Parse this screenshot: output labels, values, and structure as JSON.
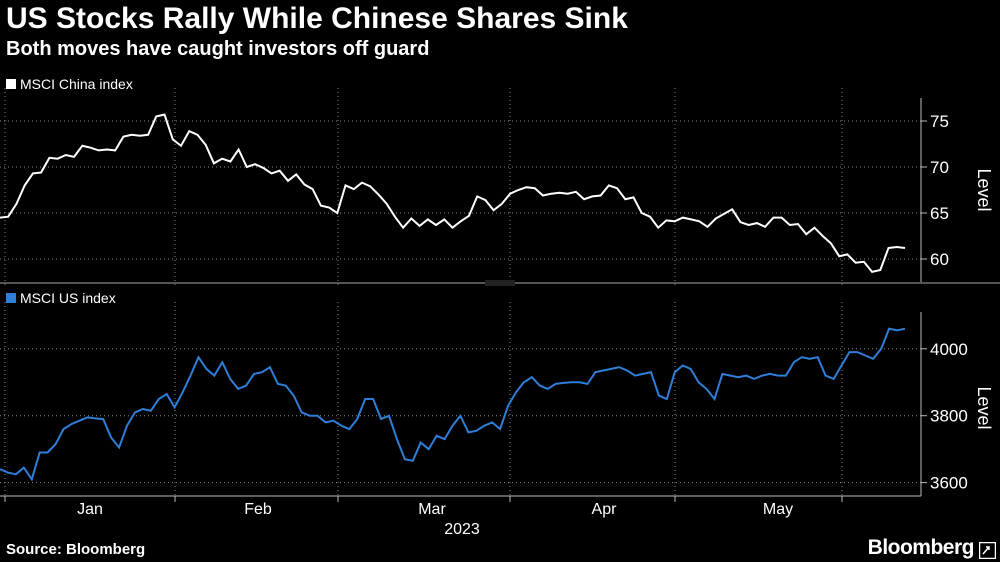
{
  "header": {
    "title": "US Stocks Rally While Chinese Shares Sink",
    "subtitle": "Both moves have caught investors off guard"
  },
  "footer": {
    "source": "Source: Bloomberg",
    "brand": "Bloomberg"
  },
  "colors": {
    "china": "#ffffff",
    "us": "#2f7ed8",
    "grid": "#8a8a8a",
    "background": "#000000"
  },
  "brand_icon": "bloomberg-terminal-icon",
  "chart_data": [
    {
      "type": "line",
      "name": "MSCI China index",
      "legend": "MSCI China index",
      "ylabel": "Level",
      "ylim": [
        57.5,
        77.5
      ],
      "yticks": [
        60,
        65,
        70,
        75
      ],
      "ytick_labels": [
        "60",
        "65",
        "70",
        "75"
      ],
      "grid": true,
      "values": [
        64.5,
        64.6,
        66.0,
        68.0,
        69.3,
        69.4,
        71.0,
        70.9,
        71.3,
        71.1,
        72.3,
        72.1,
        71.8,
        71.9,
        71.8,
        73.3,
        73.5,
        73.4,
        73.5,
        75.5,
        75.7,
        73.0,
        72.3,
        73.9,
        73.5,
        72.4,
        70.4,
        70.9,
        70.6,
        71.9,
        70.0,
        70.3,
        69.9,
        69.3,
        69.6,
        68.5,
        69.2,
        68.1,
        67.6,
        65.8,
        65.6,
        65.0,
        68.0,
        67.6,
        68.3,
        67.9,
        67.0,
        66.0,
        64.6,
        63.4,
        64.4,
        63.6,
        64.3,
        63.7,
        64.3,
        63.4,
        64.1,
        64.7,
        66.8,
        66.4,
        65.3,
        66.0,
        67.1,
        67.5,
        67.8,
        67.7,
        66.9,
        67.1,
        67.2,
        67.1,
        67.3,
        66.5,
        66.8,
        66.9,
        68.0,
        67.7,
        66.5,
        66.7,
        65.0,
        64.6,
        63.4,
        64.2,
        64.1,
        64.5,
        64.3,
        64.1,
        63.5,
        64.4,
        64.9,
        65.4,
        64.0,
        63.7,
        63.9,
        63.5,
        64.5,
        64.5,
        63.7,
        63.8,
        62.7,
        63.4,
        62.5,
        61.7,
        60.3,
        60.5,
        59.6,
        59.7,
        58.6,
        58.8,
        61.2,
        61.3,
        61.2
      ],
      "first_value_date": "late Dec 2022",
      "xticks": [
        "Jan",
        "Feb",
        "Mar",
        "Apr",
        "May"
      ]
    },
    {
      "type": "line",
      "name": "MSCI US index",
      "legend": "MSCI US index",
      "ylabel": "Level",
      "ylim": [
        3560,
        4110
      ],
      "yticks": [
        3600,
        3800,
        4000
      ],
      "ytick_labels": [
        "3600",
        "3800",
        "4000"
      ],
      "grid": true,
      "values": [
        3640,
        3630,
        3625,
        3645,
        3610,
        3690,
        3690,
        3715,
        3760,
        3775,
        3785,
        3795,
        3792,
        3790,
        3735,
        3705,
        3770,
        3810,
        3820,
        3815,
        3850,
        3865,
        3825,
        3870,
        3920,
        3975,
        3940,
        3920,
        3960,
        3910,
        3880,
        3890,
        3925,
        3930,
        3945,
        3895,
        3890,
        3860,
        3810,
        3800,
        3800,
        3780,
        3785,
        3770,
        3760,
        3790,
        3850,
        3850,
        3790,
        3800,
        3730,
        3670,
        3665,
        3720,
        3700,
        3740,
        3730,
        3770,
        3800,
        3750,
        3755,
        3770,
        3780,
        3760,
        3830,
        3870,
        3900,
        3915,
        3890,
        3880,
        3895,
        3898,
        3900,
        3900,
        3895,
        3930,
        3935,
        3940,
        3945,
        3935,
        3920,
        3925,
        3930,
        3860,
        3850,
        3930,
        3950,
        3940,
        3900,
        3880,
        3850,
        3925,
        3920,
        3915,
        3920,
        3910,
        3920,
        3925,
        3920,
        3920,
        3960,
        3975,
        3970,
        3975,
        3920,
        3910,
        3950,
        3990,
        3990,
        3980,
        3970,
        4000,
        4060,
        4055,
        4060
      ]
    }
  ],
  "x_axis": {
    "ticks": [
      "Jan",
      "Feb",
      "Mar",
      "Apr",
      "May"
    ],
    "year_label": "2023"
  }
}
